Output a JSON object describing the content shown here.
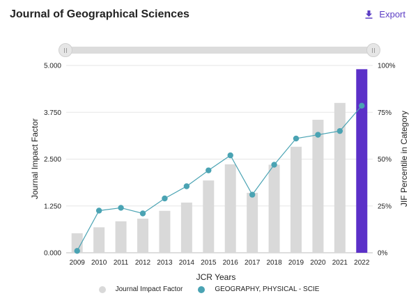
{
  "header": {
    "title": "Journal of Geographical Sciences",
    "export_label": "Export"
  },
  "colors": {
    "bar": "#d9d9d9",
    "highlight_bar": "#5b30c8",
    "line": "#4aa3b3",
    "accent": "#5b3cc4",
    "grid": "#e6e6e6"
  },
  "chart_data": {
    "type": "bar",
    "categories": [
      "2009",
      "2010",
      "2011",
      "2012",
      "2013",
      "2014",
      "2015",
      "2016",
      "2017",
      "2018",
      "2019",
      "2020",
      "2021",
      "2022"
    ],
    "series": [
      {
        "name": "Journal Impact Factor",
        "type": "bar",
        "axis": "left",
        "values": [
          0.52,
          0.68,
          0.84,
          0.91,
          1.12,
          1.34,
          1.93,
          2.36,
          1.6,
          2.35,
          2.83,
          3.55,
          4.0,
          4.9
        ]
      },
      {
        "name": "GEOGRAPHY, PHYSICAL - SCIE",
        "type": "line",
        "axis": "right",
        "values": [
          1,
          22.5,
          24,
          21,
          29,
          35.5,
          44,
          52,
          31,
          47,
          61,
          63,
          65,
          78.5
        ]
      }
    ],
    "highlight_category": "2022",
    "xlabel": "JCR Years",
    "ylabel": "Journal Impact Factor",
    "y2label": "JIF Percentile in Category",
    "ylim": [
      0,
      5
    ],
    "y2lim": [
      0,
      100
    ],
    "yticks": [
      "0.000",
      "1.250",
      "2.500",
      "3.750",
      "5.000"
    ],
    "y2ticks": [
      "0%",
      "25%",
      "50%",
      "75%",
      "100%"
    ],
    "grid": true,
    "legend": "bottom-center"
  }
}
